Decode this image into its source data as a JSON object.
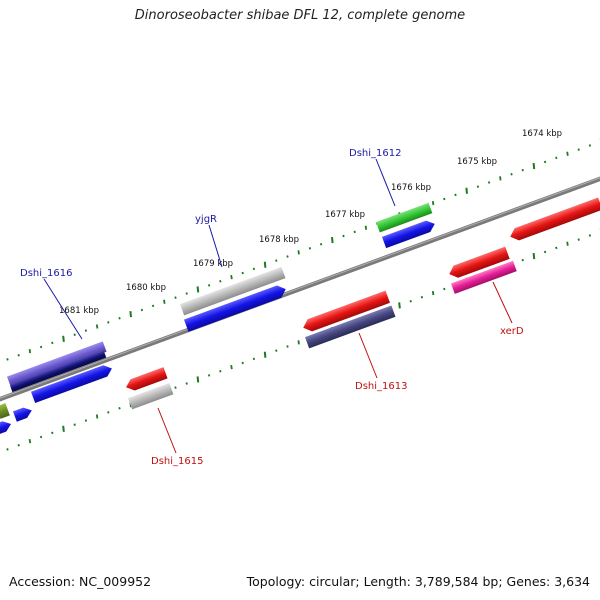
{
  "title": "Dinoroseobacter shibae DFL 12, complete genome",
  "footer": {
    "accession": "Accession: NC_009952",
    "genome_info": "Topology: circular; Length: 3,789,584 bp; Genes: 3,634"
  },
  "scale_labels": [
    "1674 kbp",
    "1675 kbp",
    "1676 kbp",
    "1677 kbp",
    "1678 kbp",
    "1679 kbp",
    "1680 kbp",
    "1681 kbp"
  ],
  "gene_labels": {
    "dshi_1612": "Dshi_1612",
    "yjgR": "yjgR",
    "dshi_1616": "Dshi_1616",
    "xerD": "xerD",
    "dshi_1613": "Dshi_1613",
    "dshi_1615": "Dshi_1615"
  },
  "colors": {
    "backbone": "#7a7a7a",
    "ticks": "#1e7a1e",
    "forward_label": "#1a1aa6",
    "reverse_label": "#c01010",
    "blue": "#1414e6",
    "red": "#e61414",
    "grey": "#b4b4b4",
    "green": "#32c832",
    "pink": "#e61e96",
    "slate": "#46467f",
    "purple": "#6a5acd",
    "navy": "#101070",
    "olive": "#6b8e23"
  }
}
